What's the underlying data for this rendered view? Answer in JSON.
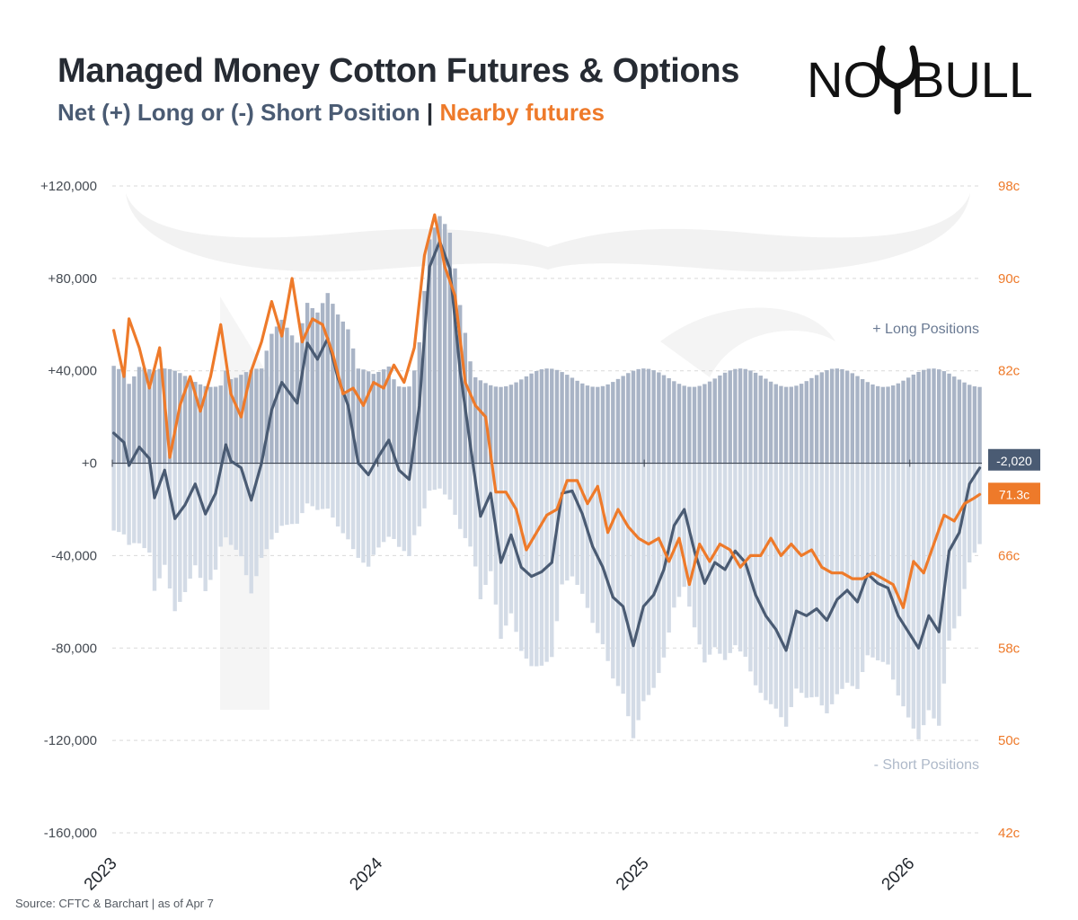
{
  "title": "Managed Money Cotton Futures & Options",
  "subtitle": {
    "net_label": "Net (+) Long or (-) Short Position",
    "separator": "|",
    "futures_label": "Nearby futures"
  },
  "logo": {
    "text_left": "NO",
    "text_right": "BULL",
    "icon": "bull-horns-logo"
  },
  "source": "Source: CFTC & Barchart | as of Apr 7",
  "colors": {
    "net": "#4a5b73",
    "futures": "#ee7a2a",
    "long_bars": "#a9b4c6",
    "short_bars": "#d3dbe6",
    "grid": "#d9d9d9"
  },
  "chart_data": {
    "type": "line",
    "x_labels": [
      "2023",
      "2024",
      "2025",
      "2026"
    ],
    "left_axis": {
      "ticks": [
        120000,
        80000,
        40000,
        0,
        -40000,
        -80000,
        -120000,
        -160000
      ],
      "tick_labels": [
        "+120,000",
        "+80,000",
        "+40,000",
        "+0",
        "-40,000",
        "-80,000",
        "-120,000",
        "-160,000"
      ],
      "ylim": [
        -160000,
        120000
      ]
    },
    "right_axis": {
      "ticks": [
        98,
        90,
        82,
        74,
        66,
        58,
        50,
        42
      ],
      "tick_labels": [
        "98c",
        "90c",
        "82c",
        "",
        "66c",
        "58c",
        "50c",
        "42c"
      ],
      "ylim": [
        42,
        98
      ]
    },
    "annotations": {
      "long": "+ Long Positions",
      "short": "- Short Positions"
    },
    "last_values": {
      "net_label": "-2,020",
      "futures_label": "71.3c"
    },
    "series": [
      {
        "name": "Net (+) Long or (-) Short Position",
        "axis": "left",
        "anchors": [
          [
            "2023-01-03",
            13000
          ],
          [
            "2023-01-17",
            9000
          ],
          [
            "2023-01-24",
            -1000
          ],
          [
            "2023-02-07",
            7000
          ],
          [
            "2023-02-21",
            2000
          ],
          [
            "2023-02-28",
            -15000
          ],
          [
            "2023-03-14",
            -3000
          ],
          [
            "2023-03-28",
            -24000
          ],
          [
            "2023-04-11",
            -18000
          ],
          [
            "2023-04-25",
            -9000
          ],
          [
            "2023-05-09",
            -22000
          ],
          [
            "2023-05-23",
            -13000
          ],
          [
            "2023-06-06",
            8000
          ],
          [
            "2023-06-13",
            1000
          ],
          [
            "2023-06-27",
            -2000
          ],
          [
            "2023-07-11",
            -16000
          ],
          [
            "2023-07-25",
            0
          ],
          [
            "2023-08-08",
            23000
          ],
          [
            "2023-08-22",
            35000
          ],
          [
            "2023-09-12",
            26000
          ],
          [
            "2023-09-26",
            52000
          ],
          [
            "2023-10-10",
            45000
          ],
          [
            "2023-10-24",
            54000
          ],
          [
            "2023-11-07",
            37000
          ],
          [
            "2023-11-21",
            25000
          ],
          [
            "2023-12-05",
            0
          ],
          [
            "2023-12-19",
            -5000
          ],
          [
            "2024-01-02",
            3000
          ],
          [
            "2024-01-16",
            10000
          ],
          [
            "2024-01-30",
            -3000
          ],
          [
            "2024-02-13",
            -7000
          ],
          [
            "2024-02-27",
            25000
          ],
          [
            "2024-03-12",
            85000
          ],
          [
            "2024-03-26",
            96000
          ],
          [
            "2024-04-09",
            84000
          ],
          [
            "2024-04-23",
            40000
          ],
          [
            "2024-05-07",
            8000
          ],
          [
            "2024-05-21",
            -23000
          ],
          [
            "2024-06-04",
            -13000
          ],
          [
            "2024-06-18",
            -43000
          ],
          [
            "2024-07-02",
            -31000
          ],
          [
            "2024-07-16",
            -45000
          ],
          [
            "2024-07-30",
            -49000
          ],
          [
            "2024-08-13",
            -47000
          ],
          [
            "2024-08-27",
            -43000
          ],
          [
            "2024-09-10",
            -13000
          ],
          [
            "2024-09-24",
            -12000
          ],
          [
            "2024-10-08",
            -22000
          ],
          [
            "2024-10-22",
            -36000
          ],
          [
            "2024-11-05",
            -45000
          ],
          [
            "2024-11-19",
            -58000
          ],
          [
            "2024-12-03",
            -62000
          ],
          [
            "2024-12-17",
            -79000
          ],
          [
            "2024-12-31",
            -62000
          ],
          [
            "2025-01-14",
            -57000
          ],
          [
            "2025-01-28",
            -46000
          ],
          [
            "2025-02-11",
            -27000
          ],
          [
            "2025-02-25",
            -20000
          ],
          [
            "2025-03-11",
            -38000
          ],
          [
            "2025-03-25",
            -52000
          ],
          [
            "2025-04-08",
            -43000
          ],
          [
            "2025-04-22",
            -46000
          ],
          [
            "2025-05-06",
            -38000
          ],
          [
            "2025-05-20",
            -43000
          ],
          [
            "2025-06-03",
            -57000
          ],
          [
            "2025-06-17",
            -66000
          ],
          [
            "2025-07-01",
            -72000
          ],
          [
            "2025-07-15",
            -81000
          ],
          [
            "2025-07-29",
            -64000
          ],
          [
            "2025-08-12",
            -66000
          ],
          [
            "2025-08-26",
            -63000
          ],
          [
            "2025-09-09",
            -68000
          ],
          [
            "2025-09-23",
            -59000
          ],
          [
            "2025-10-07",
            -55000
          ],
          [
            "2025-10-21",
            -60000
          ],
          [
            "2025-11-04",
            -48000
          ],
          [
            "2025-11-18",
            -52000
          ],
          [
            "2025-12-02",
            -54000
          ],
          [
            "2025-12-16",
            -66000
          ],
          [
            "2025-12-30",
            -73000
          ],
          [
            "2026-01-13",
            -80000
          ],
          [
            "2026-01-27",
            -66000
          ],
          [
            "2026-02-10",
            -73000
          ],
          [
            "2026-02-24",
            -38000
          ],
          [
            "2026-03-10",
            -30000
          ],
          [
            "2026-03-24",
            -9000
          ],
          [
            "2026-04-07",
            -2020
          ]
        ]
      },
      {
        "name": "Nearby futures",
        "axis": "right",
        "anchors": [
          [
            "2023-01-03",
            85.5
          ],
          [
            "2023-01-17",
            81.5
          ],
          [
            "2023-01-24",
            86.5
          ],
          [
            "2023-02-07",
            84.0
          ],
          [
            "2023-02-21",
            80.5
          ],
          [
            "2023-03-07",
            84.0
          ],
          [
            "2023-03-21",
            74.5
          ],
          [
            "2023-04-04",
            79.0
          ],
          [
            "2023-04-18",
            81.5
          ],
          [
            "2023-05-02",
            78.5
          ],
          [
            "2023-05-16",
            81.5
          ],
          [
            "2023-05-30",
            86.0
          ],
          [
            "2023-06-13",
            80.0
          ],
          [
            "2023-06-27",
            78.0
          ],
          [
            "2023-07-11",
            82.0
          ],
          [
            "2023-07-25",
            84.5
          ],
          [
            "2023-08-08",
            88.0
          ],
          [
            "2023-08-22",
            85.0
          ],
          [
            "2023-09-05",
            90.0
          ],
          [
            "2023-09-19",
            84.5
          ],
          [
            "2023-10-03",
            86.5
          ],
          [
            "2023-10-17",
            86.0
          ],
          [
            "2023-10-31",
            83.5
          ],
          [
            "2023-11-14",
            80.0
          ],
          [
            "2023-11-28",
            80.5
          ],
          [
            "2023-12-12",
            79.0
          ],
          [
            "2023-12-26",
            81.0
          ],
          [
            "2024-01-09",
            80.5
          ],
          [
            "2024-01-23",
            82.5
          ],
          [
            "2024-02-06",
            81.0
          ],
          [
            "2024-02-20",
            84.0
          ],
          [
            "2024-03-05",
            92.0
          ],
          [
            "2024-03-19",
            95.5
          ],
          [
            "2024-04-02",
            91.0
          ],
          [
            "2024-04-16",
            88.5
          ],
          [
            "2024-04-30",
            81.0
          ],
          [
            "2024-05-14",
            79.0
          ],
          [
            "2024-05-28",
            78.0
          ],
          [
            "2024-06-11",
            71.5
          ],
          [
            "2024-06-25",
            71.5
          ],
          [
            "2024-07-09",
            70.0
          ],
          [
            "2024-07-23",
            66.5
          ],
          [
            "2024-08-06",
            68.0
          ],
          [
            "2024-08-20",
            69.5
          ],
          [
            "2024-09-03",
            70.0
          ],
          [
            "2024-09-17",
            72.5
          ],
          [
            "2024-10-01",
            72.5
          ],
          [
            "2024-10-15",
            70.5
          ],
          [
            "2024-10-29",
            72.0
          ],
          [
            "2024-11-12",
            68.0
          ],
          [
            "2024-11-26",
            70.0
          ],
          [
            "2024-12-10",
            68.5
          ],
          [
            "2024-12-24",
            67.5
          ],
          [
            "2025-01-07",
            67.0
          ],
          [
            "2025-01-21",
            67.5
          ],
          [
            "2025-02-04",
            65.5
          ],
          [
            "2025-02-18",
            67.5
          ],
          [
            "2025-03-04",
            63.5
          ],
          [
            "2025-03-18",
            67.0
          ],
          [
            "2025-04-01",
            65.5
          ],
          [
            "2025-04-15",
            67.0
          ],
          [
            "2025-04-29",
            66.5
          ],
          [
            "2025-05-13",
            65.0
          ],
          [
            "2025-05-27",
            66.0
          ],
          [
            "2025-06-10",
            66.0
          ],
          [
            "2025-06-24",
            67.5
          ],
          [
            "2025-07-08",
            66.0
          ],
          [
            "2025-07-22",
            67.0
          ],
          [
            "2025-08-05",
            66.0
          ],
          [
            "2025-08-19",
            66.5
          ],
          [
            "2025-09-02",
            65.0
          ],
          [
            "2025-09-16",
            64.5
          ],
          [
            "2025-09-30",
            64.5
          ],
          [
            "2025-10-14",
            64.0
          ],
          [
            "2025-10-28",
            64.0
          ],
          [
            "2025-11-11",
            64.5
          ],
          [
            "2025-11-25",
            64.0
          ],
          [
            "2025-12-09",
            63.5
          ],
          [
            "2025-12-23",
            61.5
          ],
          [
            "2026-01-06",
            65.5
          ],
          [
            "2026-01-20",
            64.5
          ],
          [
            "2026-02-03",
            67.0
          ],
          [
            "2026-02-17",
            69.5
          ],
          [
            "2026-03-03",
            69.0
          ],
          [
            "2026-03-17",
            70.5
          ],
          [
            "2026-03-31",
            71.0
          ],
          [
            "2026-04-07",
            71.3
          ]
        ]
      }
    ]
  }
}
